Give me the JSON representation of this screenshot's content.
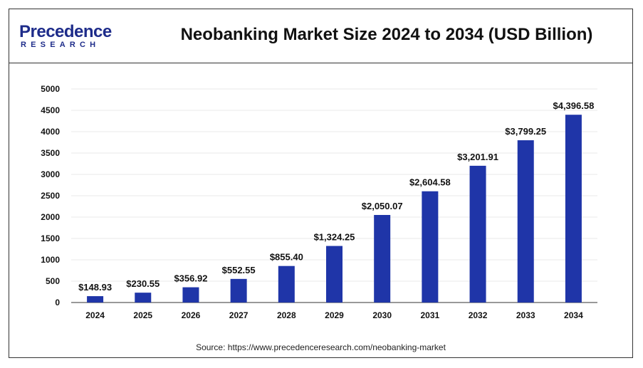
{
  "header": {
    "logo_main": "Precedence",
    "logo_sub": "RESEARCH",
    "title": "Neobanking Market Size 2024 to 2034 (USD Billion)"
  },
  "source": "Source: https://www.precedenceresearch.com/neobanking-market",
  "colors": {
    "bar": "#1f35a8",
    "logo": "#1e2c8a",
    "grid": "#e8e8e8",
    "axis": "#333333"
  },
  "chart_data": {
    "type": "bar",
    "title": "Neobanking Market Size 2024 to 2034 (USD Billion)",
    "xlabel": "",
    "ylabel": "",
    "ylim": [
      0,
      5000
    ],
    "yticks": [
      0,
      500,
      1000,
      1500,
      2000,
      2500,
      3000,
      3500,
      4000,
      4500,
      5000
    ],
    "ytick_labels": [
      "0",
      "500",
      "1000",
      "1500",
      "2000",
      "2500",
      "3000",
      "3500",
      "4000",
      "4500",
      "5000"
    ],
    "categories": [
      "2024",
      "2025",
      "2026",
      "2027",
      "2028",
      "2029",
      "2030",
      "2031",
      "2032",
      "2033",
      "2034"
    ],
    "values": [
      148.93,
      230.55,
      356.92,
      552.55,
      855.4,
      1324.25,
      2050.07,
      2604.58,
      3201.91,
      3799.25,
      4396.58
    ],
    "data_labels": [
      "$148.93",
      "$230.55",
      "$356.92",
      "$552.55",
      "$855.40",
      "$1,324.25",
      "$2,050.07",
      "$2,604.58",
      "$3,201.91",
      "$3,799.25",
      "$4,396.58"
    ],
    "grid": true,
    "legend": "none"
  }
}
